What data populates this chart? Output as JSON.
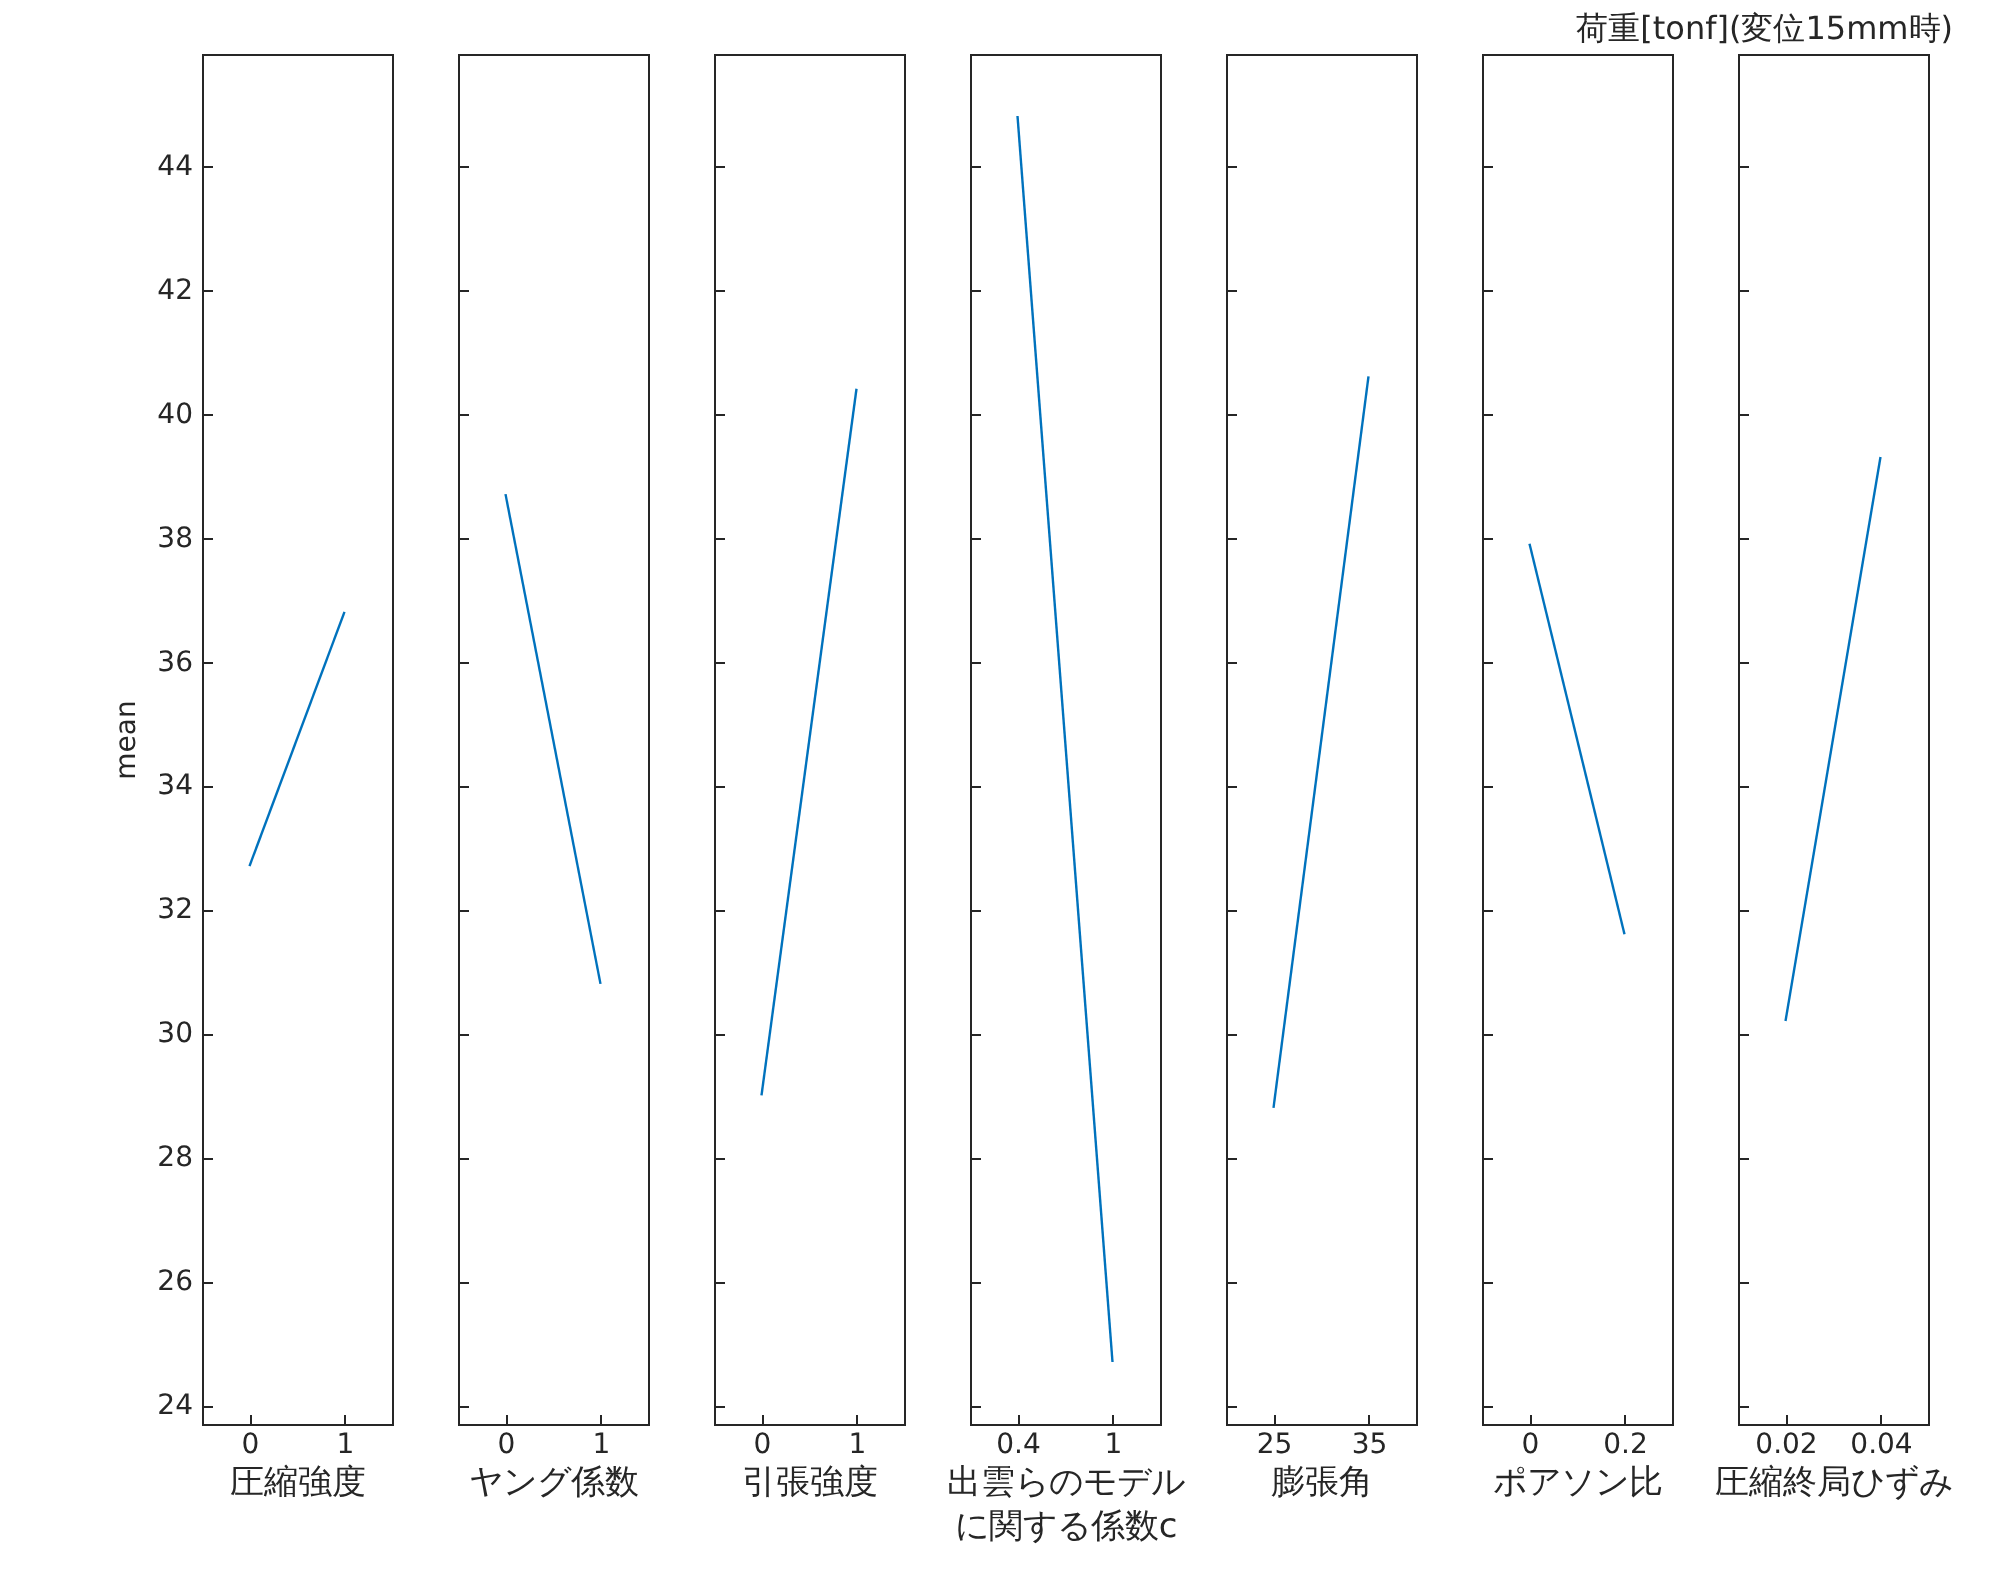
{
  "chart_data": [
    {
      "type": "line",
      "x": [
        0,
        1
      ],
      "values": [
        32.7,
        36.8
      ],
      "color": "#0072bd",
      "xlim": [
        -0.5,
        1.5
      ],
      "xticks": [
        0,
        1
      ],
      "xlabel": "圧縮強度",
      "ylabel": "mean",
      "ylim": [
        23.7,
        45.8
      ],
      "yticks": [
        24,
        26,
        28,
        30,
        32,
        34,
        36,
        38,
        40,
        42,
        44
      ]
    },
    {
      "type": "line",
      "x": [
        0,
        1
      ],
      "values": [
        38.7,
        30.8
      ],
      "color": "#0072bd",
      "xlim": [
        -0.5,
        1.5
      ],
      "xticks": [
        0,
        1
      ],
      "xlabel": "ヤング係数",
      "ylim": [
        23.7,
        45.8
      ],
      "yticks": [
        24,
        26,
        28,
        30,
        32,
        34,
        36,
        38,
        40,
        42,
        44
      ],
      "tick_labels": "x"
    },
    {
      "type": "line",
      "x": [
        0,
        1
      ],
      "values": [
        29.0,
        40.4
      ],
      "color": "#0072bd",
      "xlim": [
        -0.5,
        1.5
      ],
      "xticks": [
        0,
        1
      ],
      "xlabel": "引張強度",
      "ylim": [
        23.7,
        45.8
      ],
      "yticks": [
        24,
        26,
        28,
        30,
        32,
        34,
        36,
        38,
        40,
        42,
        44
      ],
      "tick_labels": "x"
    },
    {
      "type": "line",
      "x": [
        0.4,
        1
      ],
      "values": [
        44.8,
        24.7
      ],
      "color": "#0072bd",
      "xlim": [
        0.1,
        1.3
      ],
      "xticks": [
        0.4,
        {
          "value": 1,
          "label": "1"
        }
      ],
      "xlabel": "出雲らのモデルに関する係数c",
      "ylim": [
        23.7,
        45.8
      ],
      "yticks": [
        24,
        26,
        28,
        30,
        32,
        34,
        36,
        38,
        40,
        42,
        44
      ],
      "tick_labels": "x"
    },
    {
      "type": "line",
      "x": [
        25,
        35
      ],
      "values": [
        28.8,
        40.6
      ],
      "color": "#0072bd",
      "xlim": [
        20,
        40
      ],
      "xticks": [
        25,
        35
      ],
      "xlabel": "膨張角",
      "ylim": [
        23.7,
        45.8
      ],
      "yticks": [
        24,
        26,
        28,
        30,
        32,
        34,
        36,
        38,
        40,
        42,
        44
      ],
      "tick_labels": "x"
    },
    {
      "type": "line",
      "x": [
        0,
        0.2
      ],
      "values": [
        37.9,
        31.6
      ],
      "color": "#0072bd",
      "xlim": [
        -0.1,
        0.3
      ],
      "xticks": [
        {
          "value": 0,
          "label": "0"
        },
        0.2
      ],
      "xlabel": "ポアソン比",
      "ylim": [
        23.7,
        45.8
      ],
      "yticks": [
        24,
        26,
        28,
        30,
        32,
        34,
        36,
        38,
        40,
        42,
        44
      ],
      "tick_labels": "x"
    },
    {
      "type": "line",
      "x": [
        0.02,
        0.04
      ],
      "values": [
        30.2,
        39.3
      ],
      "color": "#0072bd",
      "xlim": [
        0.01,
        0.05
      ],
      "xticks": [
        0.02,
        0.04
      ],
      "xlabel": "圧縮終局ひずみ",
      "title": "荷重[tonf](変位15mm時)",
      "ylim": [
        23.7,
        45.8
      ],
      "yticks": [
        24,
        26,
        28,
        30,
        32,
        34,
        36,
        38,
        40,
        42,
        44
      ],
      "tick_labels": "x"
    }
  ]
}
